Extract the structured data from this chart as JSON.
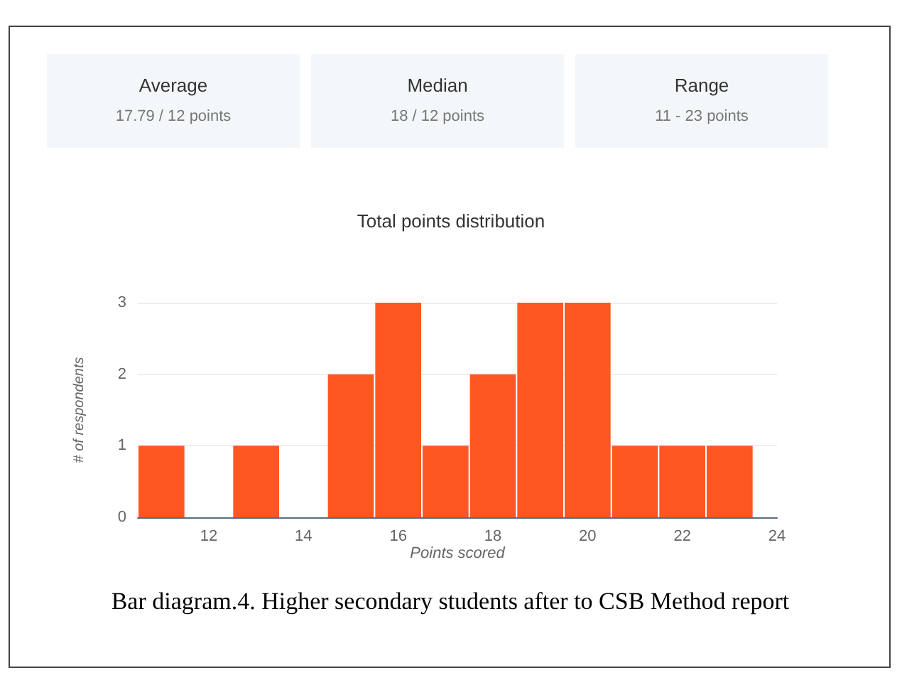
{
  "chart_data": {
    "type": "histogram",
    "title": "Total points distribution",
    "xlabel": "Points scored",
    "ylabel": "# of respondents",
    "bins": [
      10.5,
      11.5,
      12.5,
      13.5,
      14.5,
      15.5,
      16.5,
      17.5,
      18.5,
      19.5,
      20.5,
      21.5,
      22.5,
      23.5
    ],
    "values": [
      1,
      0,
      1,
      0,
      2,
      3,
      1,
      2,
      3,
      3,
      1,
      1,
      1
    ],
    "color": "#ff5722",
    "xlim": [
      10.5,
      24
    ],
    "xticks": [
      12,
      14,
      16,
      18,
      20,
      22,
      24
    ],
    "ylim": [
      0,
      3
    ],
    "yticks": [
      0,
      1,
      2,
      3
    ],
    "grid": "y",
    "annotations": [
      "Average",
      "17.79 / 12 points",
      "Median",
      "18 / 12 points",
      "Range",
      "11 - 23 points",
      "Bar diagram.4. Higher secondary students after to CSB Method report"
    ]
  }
}
